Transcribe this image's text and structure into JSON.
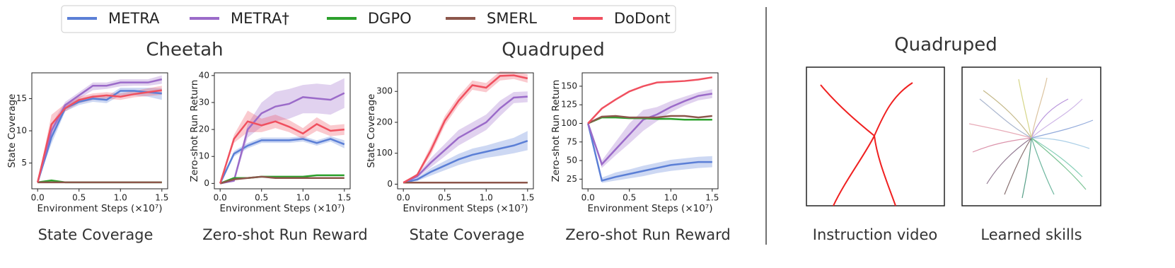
{
  "chart_data": [
    {
      "type": "line",
      "subtitle": "State Coverage",
      "x_label": "Environment Steps (×10⁷)",
      "y_label": "State Coverage",
      "x": [
        0,
        0.167,
        0.333,
        0.5,
        0.667,
        0.833,
        1.0,
        1.167,
        1.333,
        1.5
      ],
      "xlim": [
        -0.07,
        1.57
      ],
      "xticks": [
        {
          "value": 0,
          "label": "0.0"
        },
        {
          "value": 0.5,
          "label": "0.5"
        },
        {
          "value": 1,
          "label": "1.0"
        },
        {
          "value": 1.5,
          "label": "1.5"
        }
      ],
      "ylim": [
        1,
        19
      ],
      "yticks": [
        5,
        10,
        15
      ],
      "series": [
        {
          "name": "METRA",
          "color": "#5b7fd6",
          "values": [
            2,
            9,
            13.5,
            14.5,
            15,
            14.8,
            16.2,
            16.2,
            16,
            15.8
          ],
          "lower": [
            2,
            8,
            13,
            14,
            14.5,
            14.3,
            15.5,
            15.5,
            15.3,
            14.8
          ],
          "upper": [
            2,
            10,
            14,
            15,
            15.5,
            15.3,
            16.7,
            16.7,
            16.7,
            16.6
          ]
        },
        {
          "name": "METRA†",
          "color": "#9b6bc9",
          "values": [
            2,
            10,
            14,
            15.5,
            17,
            17,
            17.5,
            17.5,
            17.5,
            18
          ],
          "lower": [
            2,
            9,
            13.5,
            15,
            16.3,
            16.5,
            16.9,
            17,
            17,
            17.3
          ],
          "upper": [
            2,
            11,
            14.5,
            16,
            17.5,
            17.5,
            18,
            18,
            18,
            18.6
          ]
        },
        {
          "name": "DGPO",
          "color": "#2ca02c",
          "values": [
            2,
            2.3,
            2,
            2,
            2,
            2,
            2,
            2,
            2,
            2
          ]
        },
        {
          "name": "SMERL",
          "color": "#8c564b",
          "values": [
            2,
            2,
            2,
            2,
            2,
            2,
            2,
            2,
            2,
            2
          ]
        },
        {
          "name": "DoDont",
          "color": "#f0505f",
          "values": [
            2,
            11,
            13.5,
            14.8,
            15.3,
            15.5,
            15.3,
            15.7,
            16,
            16.3
          ],
          "lower": [
            2,
            10,
            13,
            14.3,
            14.8,
            15,
            14.8,
            15.2,
            15.4,
            15.6
          ],
          "upper": [
            2,
            12.5,
            14.2,
            15.3,
            15.8,
            16,
            15.8,
            16.2,
            16.6,
            17
          ]
        }
      ]
    },
    {
      "type": "line",
      "subtitle": "Zero-shot Run Reward",
      "x_label": "Environment Steps (×10⁷)",
      "y_label": "Zero-shot Run Return",
      "x": [
        0,
        0.167,
        0.333,
        0.5,
        0.667,
        0.833,
        1.0,
        1.167,
        1.333,
        1.5
      ],
      "xlim": [
        -0.07,
        1.57
      ],
      "xticks": [
        {
          "value": 0,
          "label": "0.0"
        },
        {
          "value": 0.5,
          "label": "0.5"
        },
        {
          "value": 1,
          "label": "1.0"
        },
        {
          "value": 1.5,
          "label": "1.5"
        }
      ],
      "ylim": [
        -2,
        41
      ],
      "yticks": [
        0,
        10,
        20,
        30,
        40
      ],
      "series": [
        {
          "name": "METRA",
          "color": "#5b7fd6",
          "values": [
            0,
            11,
            14,
            16,
            16,
            16,
            16.5,
            15,
            16.5,
            14.5
          ],
          "lower": [
            0,
            10,
            13,
            15,
            15,
            15,
            15.5,
            14,
            15.5,
            13
          ],
          "upper": [
            0,
            12,
            15,
            17,
            17,
            17,
            17.5,
            16,
            17.5,
            16
          ]
        },
        {
          "name": "METRA†",
          "color": "#9b6bc9",
          "values": [
            0,
            1,
            20,
            26,
            28.5,
            29.5,
            32,
            31.5,
            31,
            33.5
          ],
          "lower": [
            0,
            0.5,
            17,
            21,
            23,
            24,
            26,
            26,
            25.5,
            28
          ],
          "upper": [
            0,
            1.5,
            22,
            30,
            34,
            35,
            36.5,
            37,
            36.5,
            39
          ]
        },
        {
          "name": "DGPO",
          "color": "#2ca02c",
          "values": [
            0,
            2,
            2,
            2.5,
            2.5,
            2.5,
            2.5,
            3,
            3,
            3
          ]
        },
        {
          "name": "SMERL",
          "color": "#8c564b",
          "values": [
            0,
            1.5,
            2,
            2.5,
            2,
            2,
            2,
            2,
            2,
            2
          ]
        },
        {
          "name": "DoDont",
          "color": "#f0505f",
          "values": [
            0,
            16.5,
            23,
            21.5,
            23,
            21,
            18.5,
            22,
            19.5,
            20
          ],
          "lower": [
            0,
            15,
            19,
            19,
            20.5,
            19,
            16.5,
            19.5,
            17.5,
            18
          ],
          "upper": [
            0,
            18,
            27,
            24,
            25.5,
            23.5,
            20.5,
            24.5,
            21.5,
            22
          ]
        }
      ]
    },
    {
      "type": "line",
      "subtitle": "State Coverage",
      "x_label": "Environment Steps (×10⁷)",
      "y_label": "State Coverage",
      "x": [
        0,
        0.167,
        0.333,
        0.5,
        0.667,
        0.833,
        1.0,
        1.167,
        1.333,
        1.5
      ],
      "xlim": [
        -0.07,
        1.57
      ],
      "xticks": [
        {
          "value": 0,
          "label": "0.0"
        },
        {
          "value": 0.5,
          "label": "0.5"
        },
        {
          "value": 1,
          "label": "1.0"
        },
        {
          "value": 1.5,
          "label": "1.5"
        }
      ],
      "ylim": [
        -15,
        360
      ],
      "yticks": [
        0,
        100,
        200,
        300
      ],
      "series": [
        {
          "name": "METRA",
          "color": "#5b7fd6",
          "values": [
            5,
            15,
            40,
            60,
            80,
            95,
            105,
            115,
            125,
            140
          ],
          "lower": [
            5,
            10,
            28,
            45,
            62,
            75,
            85,
            92,
            100,
            110
          ],
          "upper": [
            5,
            20,
            52,
            75,
            98,
            115,
            125,
            138,
            150,
            172
          ]
        },
        {
          "name": "METRA†",
          "color": "#9b6bc9",
          "values": [
            5,
            25,
            70,
            110,
            150,
            175,
            200,
            245,
            280,
            283
          ],
          "lower": [
            5,
            20,
            55,
            90,
            125,
            150,
            175,
            220,
            262,
            265
          ],
          "upper": [
            5,
            30,
            85,
            130,
            175,
            200,
            225,
            270,
            298,
            300
          ]
        },
        {
          "name": "DGPO",
          "color": "#2ca02c",
          "values": [
            5,
            5,
            5,
            5,
            5,
            5,
            5,
            5,
            5,
            5
          ]
        },
        {
          "name": "SMERL",
          "color": "#8c564b",
          "values": [
            5,
            5,
            5,
            5,
            5,
            5,
            5,
            5,
            5,
            5
          ]
        },
        {
          "name": "DoDont",
          "color": "#f0505f",
          "values": [
            5,
            30,
            110,
            205,
            270,
            320,
            312,
            350,
            352,
            342
          ],
          "lower": [
            5,
            25,
            95,
            190,
            255,
            305,
            297,
            335,
            340,
            328
          ],
          "upper": [
            5,
            35,
            125,
            220,
            285,
            335,
            327,
            365,
            364,
            356
          ]
        }
      ]
    },
    {
      "type": "line",
      "subtitle": "Zero-shot Run Reward",
      "x_label": "Environment Steps (×10⁷)",
      "y_label": "Zero-shot Run Return",
      "x": [
        0,
        0.167,
        0.333,
        0.5,
        0.667,
        0.833,
        1.0,
        1.167,
        1.333,
        1.5
      ],
      "xlim": [
        -0.07,
        1.57
      ],
      "xticks": [
        {
          "value": 0,
          "label": "0.0"
        },
        {
          "value": 0.5,
          "label": "0.5"
        },
        {
          "value": 1,
          "label": "1.0"
        },
        {
          "value": 1.5,
          "label": "1.5"
        }
      ],
      "ylim": [
        12,
        168
      ],
      "yticks": [
        25,
        50,
        75,
        100,
        125,
        150
      ],
      "series": [
        {
          "name": "METRA",
          "color": "#5b7fd6",
          "values": [
            100,
            23,
            28,
            32,
            36,
            40,
            44,
            46,
            48,
            48
          ],
          "lower": [
            100,
            20,
            23,
            26,
            29,
            33,
            36,
            38,
            40,
            41
          ],
          "upper": [
            100,
            27,
            34,
            38,
            43,
            47,
            51,
            53,
            55,
            56
          ]
        },
        {
          "name": "METRA†",
          "color": "#9b6bc9",
          "values": [
            100,
            45,
            65,
            85,
            105,
            112,
            122,
            130,
            137,
            140
          ],
          "lower": [
            100,
            40,
            57,
            73,
            90,
            103,
            115,
            124,
            131,
            134
          ],
          "upper": [
            100,
            50,
            75,
            100,
            118,
            122,
            130,
            136,
            142,
            146
          ]
        },
        {
          "name": "DGPO",
          "color": "#2ca02c",
          "values": [
            100,
            108,
            108,
            107,
            107,
            106,
            106,
            105,
            105,
            105
          ]
        },
        {
          "name": "SMERL",
          "color": "#8c564b",
          "values": [
            100,
            109,
            110,
            108,
            108,
            108,
            110,
            110,
            108,
            110
          ]
        },
        {
          "name": "DoDont",
          "color": "#f0505f",
          "values": [
            100,
            120,
            132,
            143,
            150,
            155,
            156,
            157,
            159,
            162
          ]
        }
      ]
    }
  ],
  "group_titles": [
    "Cheetah",
    "Quadruped"
  ],
  "right_panel": {
    "title": "Quadruped",
    "captions": [
      "Instruction video",
      "Learned skills"
    ]
  }
}
